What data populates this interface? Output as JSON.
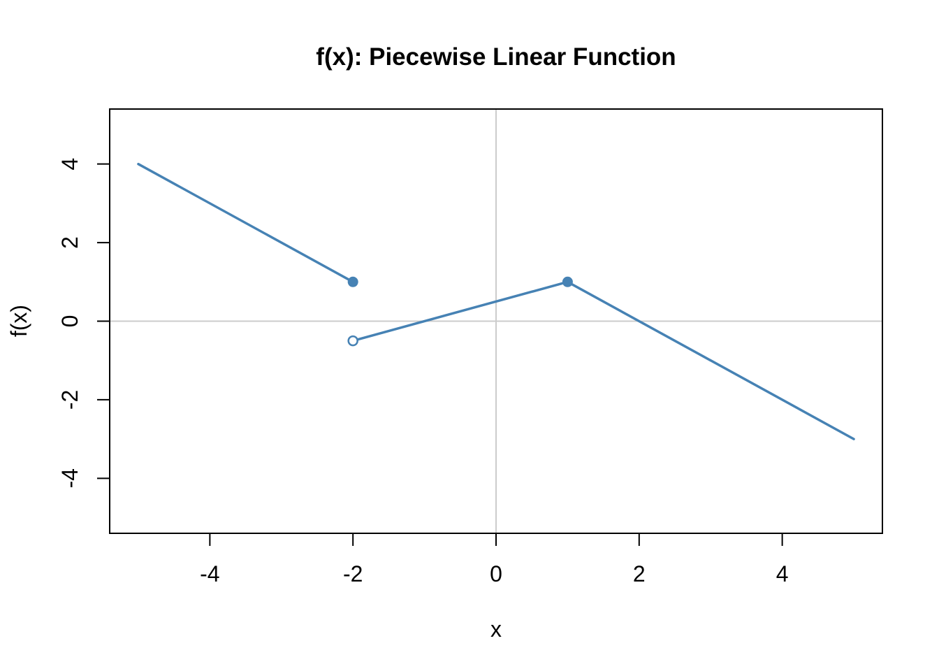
{
  "chart_data": {
    "type": "line",
    "title": "f(x): Piecewise Linear Function",
    "xlabel": "x",
    "ylabel": "f(x)",
    "xlim": [
      -5.4,
      5.4
    ],
    "ylim": [
      -5.4,
      5.4
    ],
    "x_ticks": [
      -4,
      -2,
      0,
      2,
      4
    ],
    "y_ticks": [
      -4,
      -2,
      0,
      2,
      4
    ],
    "grid": false,
    "legend": "none",
    "colors": {
      "line": "#4682B4",
      "reference": "#CCCCCC",
      "frame": "#000000",
      "text": "#000000",
      "background": "#FFFFFF"
    },
    "reference_lines": {
      "vertical_x": 0,
      "horizontal_y": 0
    },
    "segments": [
      {
        "x": [
          -5,
          -2
        ],
        "y": [
          4,
          1
        ]
      },
      {
        "x": [
          -2,
          1
        ],
        "y": [
          -0.5,
          1
        ]
      },
      {
        "x": [
          1,
          5
        ],
        "y": [
          1,
          -3
        ]
      }
    ],
    "points": [
      {
        "x": -2,
        "y": 1,
        "style": "closed"
      },
      {
        "x": -2,
        "y": -0.5,
        "style": "open"
      },
      {
        "x": 1,
        "y": 1,
        "style": "closed"
      }
    ]
  }
}
